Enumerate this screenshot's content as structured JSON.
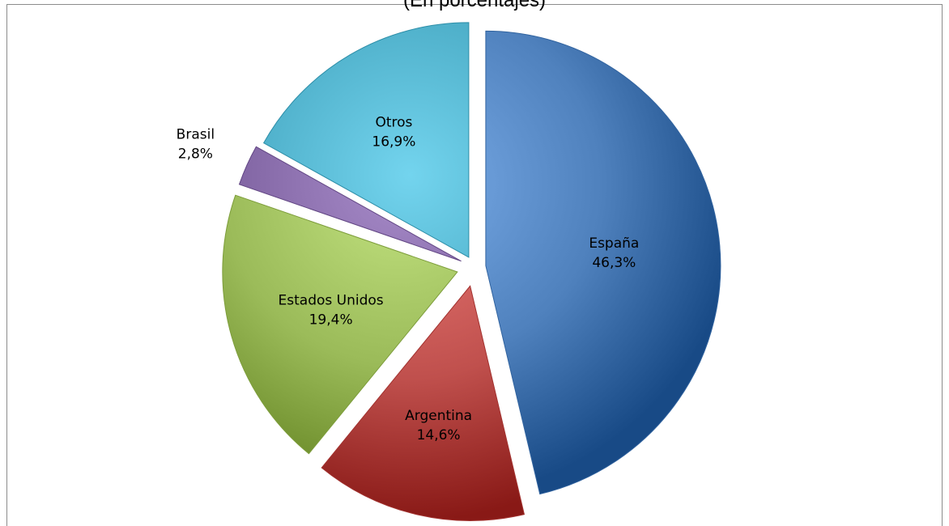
{
  "chart_data": {
    "type": "pie",
    "subtitle": "(En porcentajes)",
    "slices": [
      {
        "label": "España",
        "value_text": "46,3%",
        "value": 46.3,
        "color": "#4F81BD"
      },
      {
        "label": "Argentina",
        "value_text": "14,6%",
        "value": 14.6,
        "color": "#C0504D"
      },
      {
        "label": "Estados Unidos",
        "value_text": "19,4%",
        "value": 19.4,
        "color": "#9BBB59"
      },
      {
        "label": "Brasil",
        "value_text": "2,8%",
        "value": 2.8,
        "color": "#8064A2"
      },
      {
        "label": "Otros",
        "value_text": "16,9%",
        "value": 16.9,
        "color": "#4BACC6"
      }
    ],
    "legend": "none",
    "exploded": true
  }
}
